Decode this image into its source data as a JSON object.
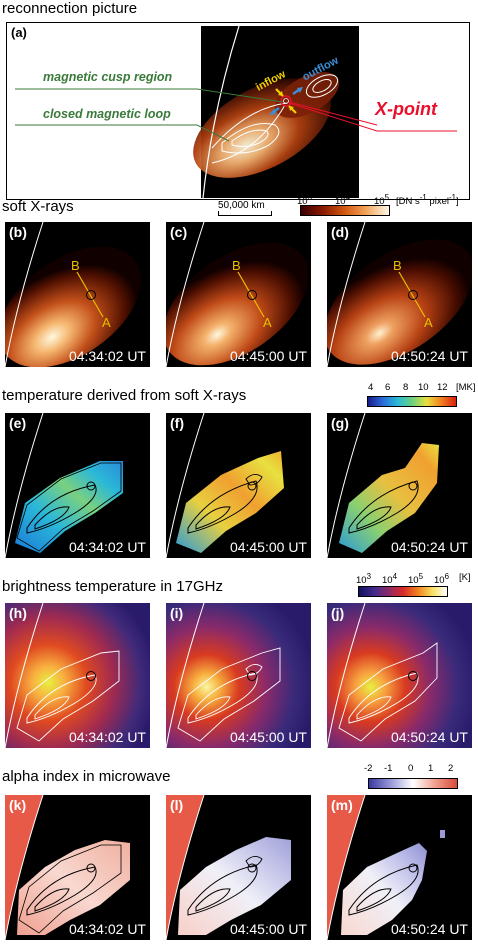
{
  "header": "reconnection picture",
  "recon": {
    "panel_label": "(a)",
    "cusp_label": "magnetic cusp region",
    "loop_label": "closed magnetic loop",
    "inflow_label": "inflow",
    "outflow_label": "outflow",
    "xpoint_label": "X-point"
  },
  "sections": {
    "sxr": {
      "title": "soft X-rays",
      "scale_label": "50,000 km",
      "cb_ticks": [
        "10",
        "10",
        "10"
      ],
      "cb_sup": [
        "3",
        "4",
        "5"
      ],
      "cb_unit_pre": "[DN s",
      "cb_unit_sup1": "-1",
      "cb_unit_mid": " pixel",
      "cb_unit_sup2": "-1",
      "cb_unit_post": "]"
    },
    "temp": {
      "title": "temperature derived from soft X-rays",
      "cb_ticks": [
        "4",
        "6",
        "8",
        "10",
        "12"
      ],
      "cb_unit": "[MK]"
    },
    "tb": {
      "title": "brightness temperature in 17GHz",
      "cb_ticks": [
        "10",
        "10",
        "10",
        "10"
      ],
      "cb_sup": [
        "3",
        "4",
        "5",
        "6"
      ],
      "cb_unit": "[K]"
    },
    "alpha": {
      "title": "alpha index in microwave",
      "cb_ticks": [
        "-2",
        "-1",
        "0",
        "1",
        "2"
      ]
    }
  },
  "panels": {
    "labels": [
      "(b)",
      "(c)",
      "(d)",
      "(e)",
      "(f)",
      "(g)",
      "(h)",
      "(i)",
      "(j)",
      "(k)",
      "(l)",
      "(m)"
    ],
    "times": [
      "04:34:02 UT",
      "04:45:00 UT",
      "04:50:24 UT"
    ],
    "slice_b": "B",
    "slice_a": "A"
  },
  "colors": {
    "cusp_line": "#3a7a3a",
    "xpoint_text": "#e8102a",
    "slice_line": "#e8c000",
    "inflow_arrow": "#f4d000",
    "outflow_arrow": "#3b8ed8"
  }
}
